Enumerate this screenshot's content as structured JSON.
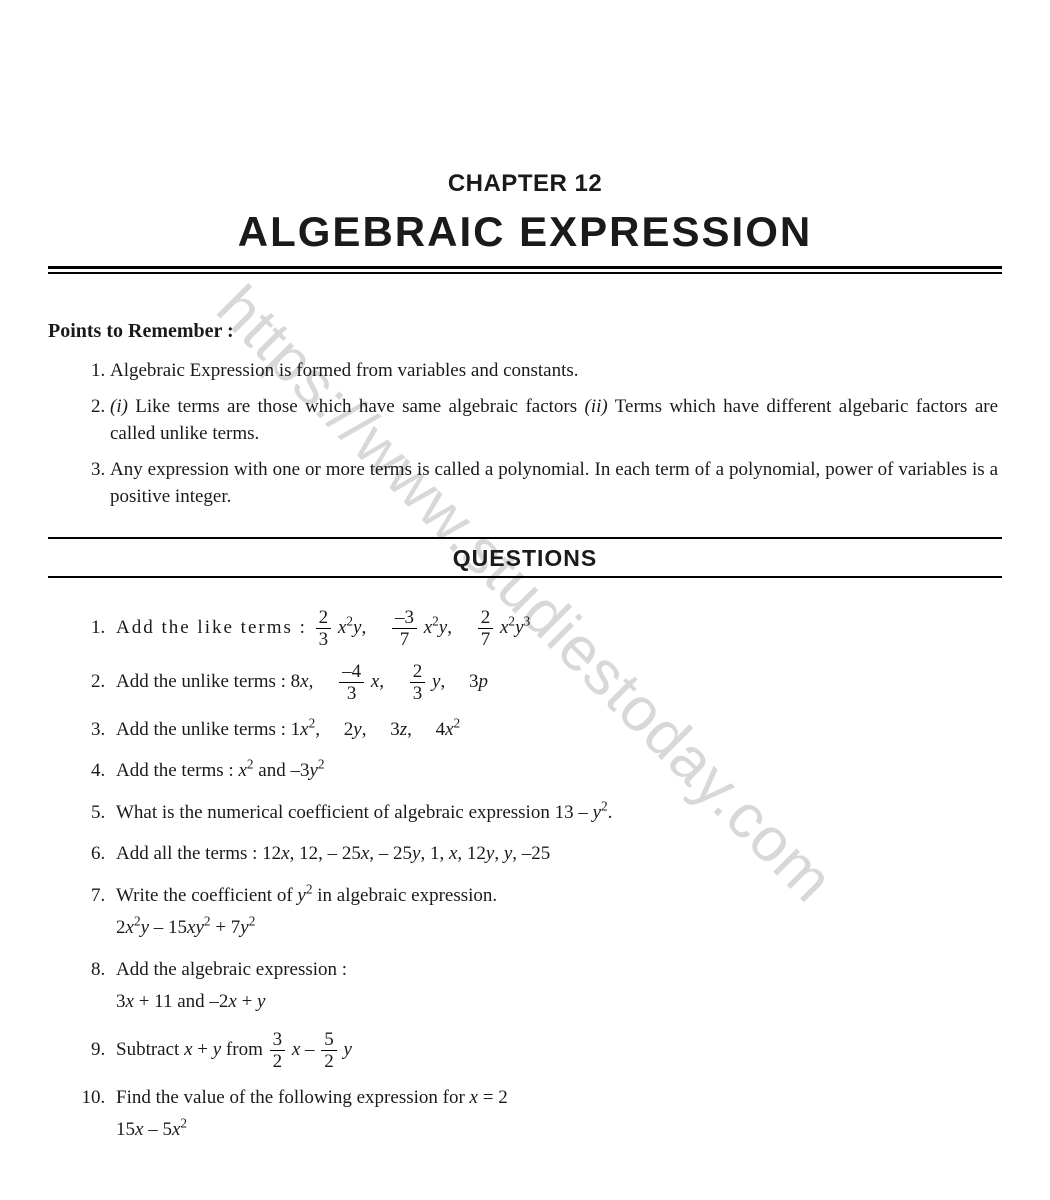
{
  "watermark": "https://www.studiestoday.com",
  "chapter_label": "CHAPTER 12",
  "title": "ALGEBRAIC EXPRESSION",
  "points_header": "Points to Remember :",
  "points": [
    "Algebraic Expression is formed from variables and constants.",
    "(i) Like terms are those which have same algebraic factors (ii) Terms which have different algebaric factors are called unlike terms.",
    "Any expression with one or more terms is called a polynomial. In each term of a polynomial, power of variables is a positive integer."
  ],
  "questions_header": "QUESTIONS",
  "q1_lead": "Add the like terms : ",
  "q2_lead": "Add the unlike terms : ",
  "q3": "Add the unlike terms : 1x²,  2y,  3z,  4x²",
  "q4": "Add the terms : x² and –3y²",
  "q5": "What is the numerical coefficient of algebraic expression 13 – y².",
  "q6": "Add all the terms : 12x, 12, – 25x, – 25y, 1, x, 12y, y, –25",
  "q7a": "Write the coefficient of y² in algebraic expression.",
  "q7b": "2x²y – 15xy² + 7y²",
  "q8a": "Add the algebraic expression :",
  "q8b": "3x + 11 and –2x + y",
  "q9_lead": "Subtract x + y from ",
  "q10a": "Find the value of the following expression for x = 2",
  "q10b": "15x – 5x²",
  "frac": {
    "n2": "2",
    "n3": "3",
    "nm3": "–3",
    "n7": "7",
    "nm4": "–4",
    "n5": "5"
  },
  "colors": {
    "text": "#1a1a1a",
    "bg": "#ffffff",
    "watermark": "#d8d8d8"
  },
  "typography": {
    "body_pt": 19,
    "title_pt": 42,
    "chapter_pt": 24,
    "header_pt": 23
  }
}
